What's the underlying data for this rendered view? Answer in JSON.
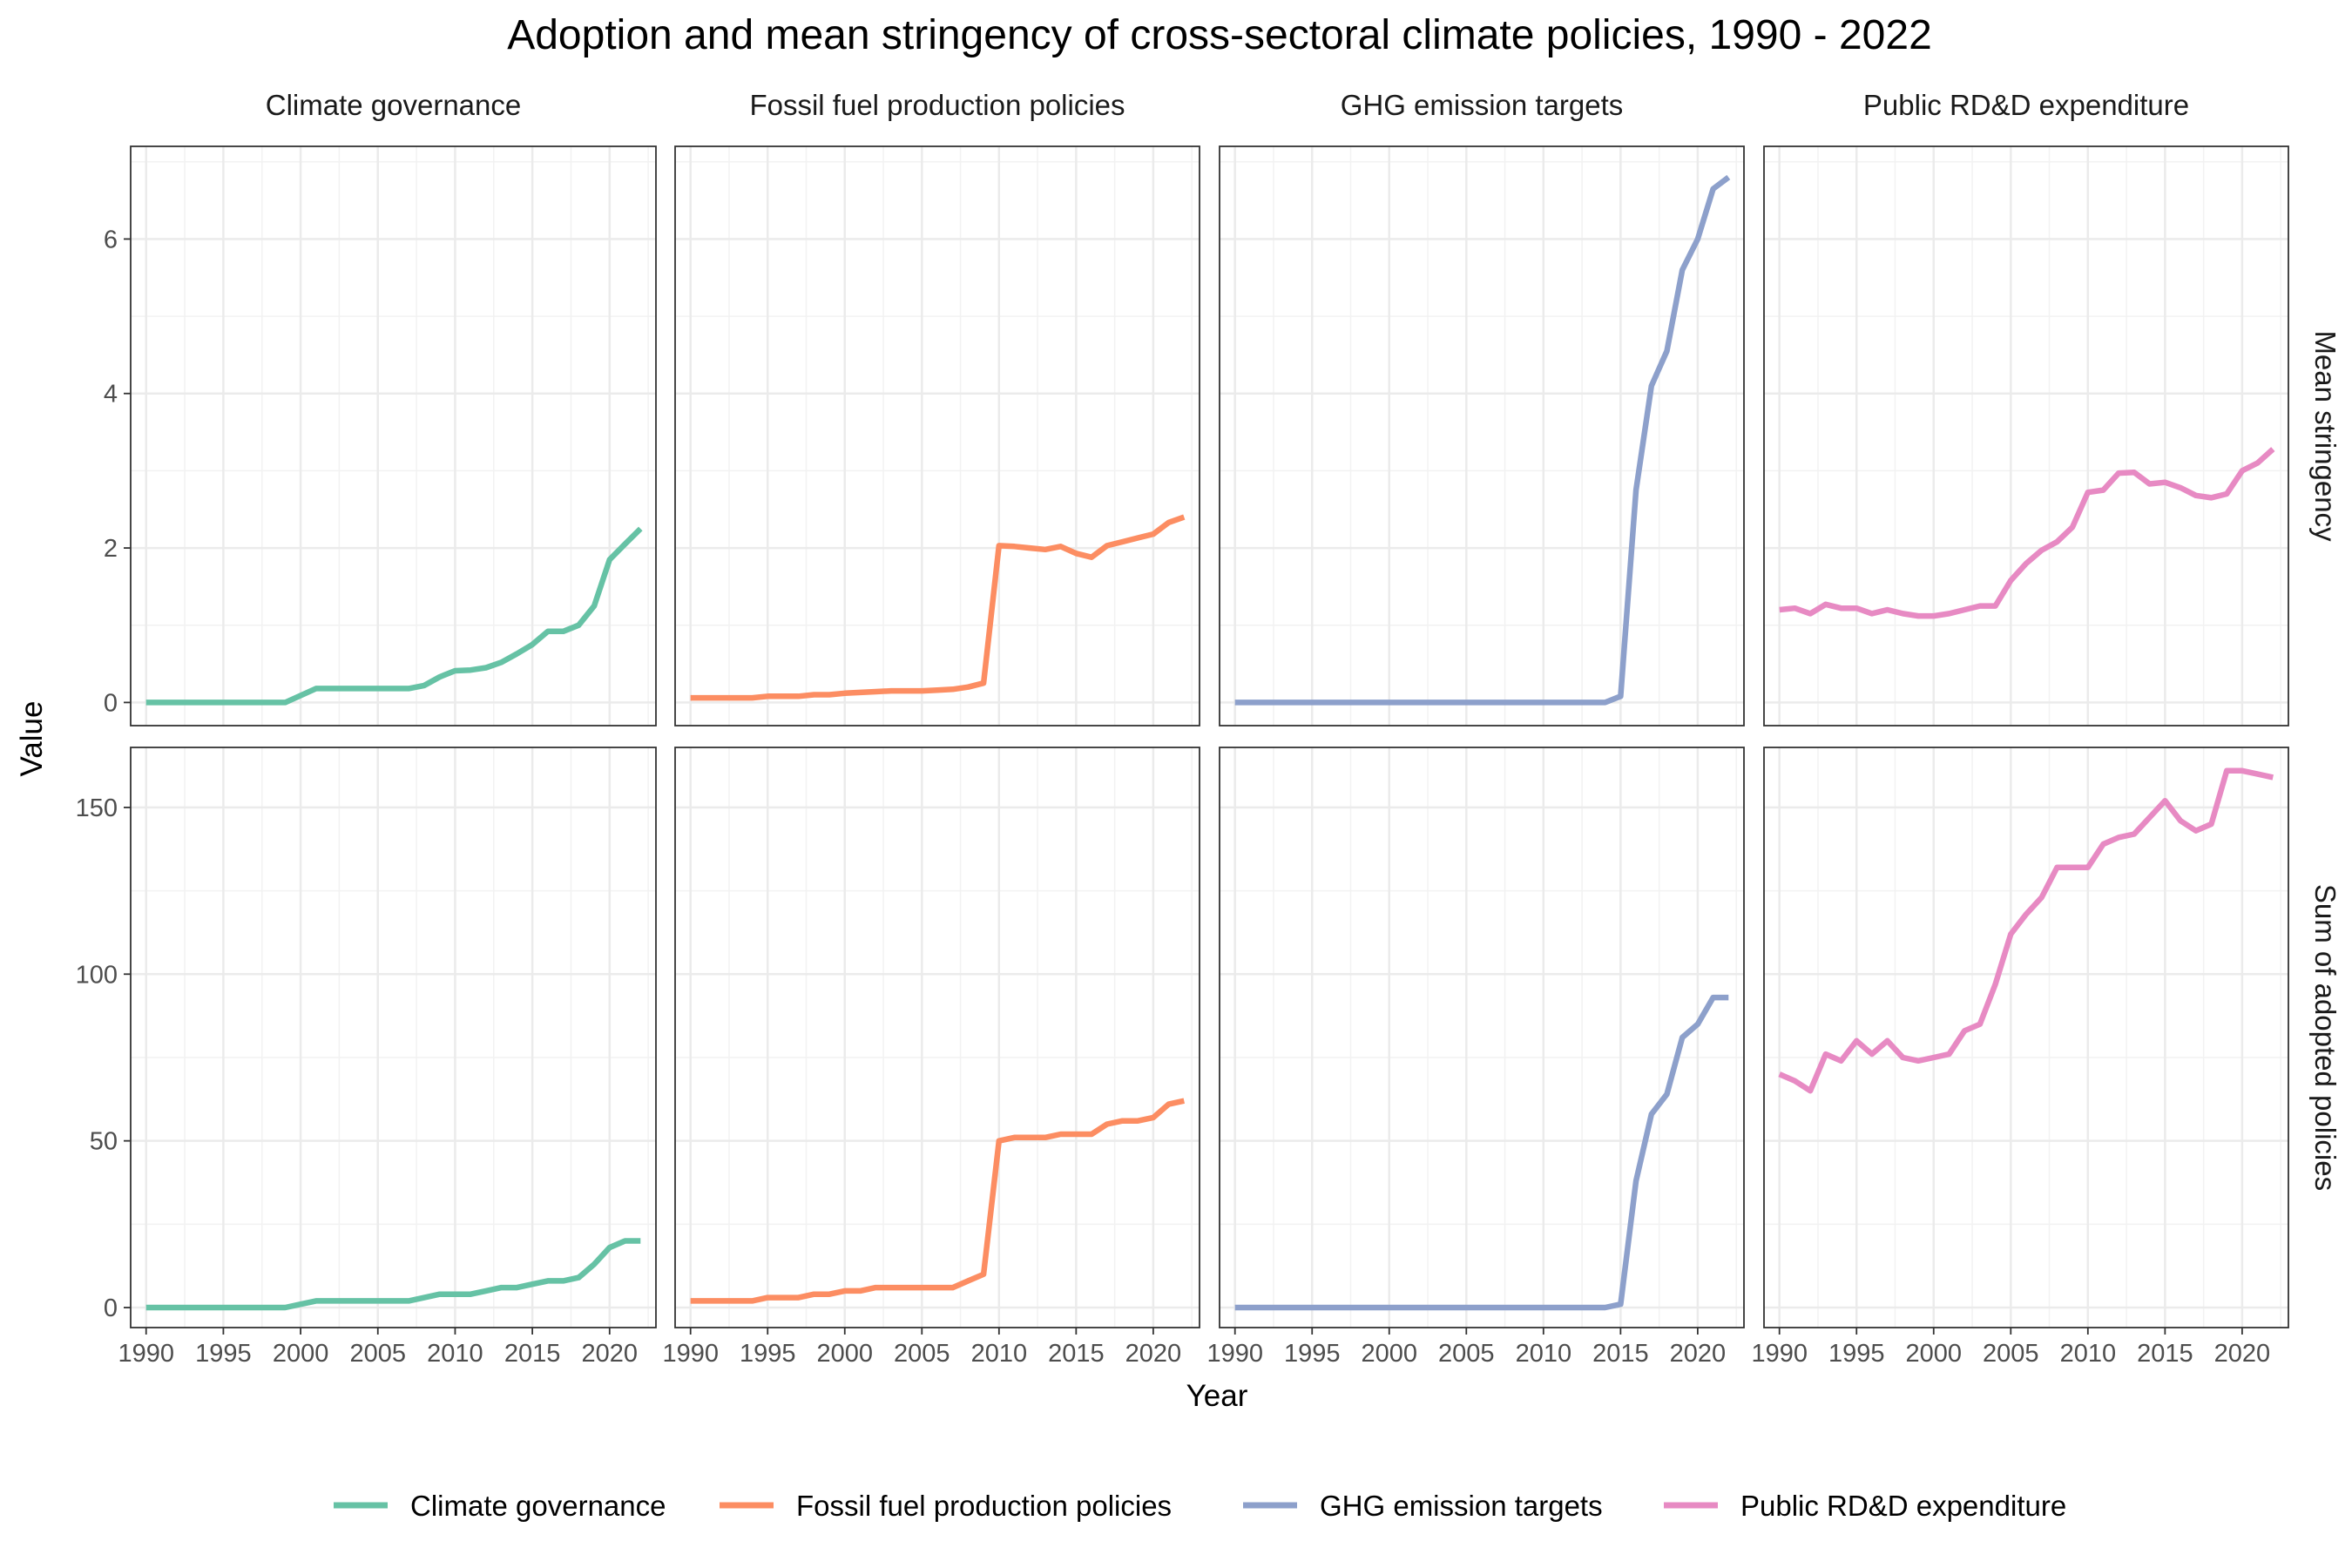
{
  "chart_data": {
    "type": "line",
    "title": "Adoption and mean stringency of cross-sectoral climate policies, 1990 - 2022",
    "xlabel": "Year",
    "ylabel": "Value",
    "x_ticks": [
      1990,
      1995,
      2000,
      2005,
      2010,
      2015,
      2020
    ],
    "xlim": [
      1989,
      2023
    ],
    "columns": [
      "Climate governance",
      "Fossil fuel production policies",
      "GHG emission targets",
      "Public RD&D expenditure"
    ],
    "rows": [
      {
        "label": "Mean stringency",
        "ylim": [
          -0.3,
          7.2
        ],
        "y_ticks": [
          0,
          2,
          4,
          6
        ]
      },
      {
        "label": "Sum of adopted policies",
        "ylim": [
          -6,
          168
        ],
        "y_ticks": [
          0,
          50,
          100,
          150
        ]
      }
    ],
    "years": [
      1990,
      1991,
      1992,
      1993,
      1994,
      1995,
      1996,
      1997,
      1998,
      1999,
      2000,
      2001,
      2002,
      2003,
      2004,
      2005,
      2006,
      2007,
      2008,
      2009,
      2010,
      2011,
      2012,
      2013,
      2014,
      2015,
      2016,
      2017,
      2018,
      2019,
      2020,
      2021,
      2022
    ],
    "series": [
      {
        "name": "Climate governance",
        "color": "#66c2a5",
        "mean_stringency": [
          0,
          0,
          0,
          0,
          0,
          0,
          0,
          0,
          0,
          0,
          0.09,
          0.18,
          0.18,
          0.18,
          0.18,
          0.18,
          0.18,
          0.18,
          0.22,
          0.33,
          0.41,
          0.42,
          0.45,
          0.52,
          0.63,
          0.75,
          0.92,
          0.92,
          1.0,
          1.25,
          1.85,
          2.05,
          2.25
        ],
        "sum_adopted": [
          0,
          0,
          0,
          0,
          0,
          0,
          0,
          0,
          0,
          0,
          1,
          2,
          2,
          2,
          2,
          2,
          2,
          2,
          3,
          4,
          4,
          4,
          5,
          6,
          6,
          7,
          8,
          8,
          9,
          13,
          18,
          20,
          20
        ]
      },
      {
        "name": "Fossil fuel production policies",
        "color": "#fc8d62",
        "mean_stringency": [
          0.06,
          0.06,
          0.06,
          0.06,
          0.06,
          0.08,
          0.08,
          0.08,
          0.1,
          0.1,
          0.12,
          0.13,
          0.14,
          0.15,
          0.15,
          0.15,
          0.16,
          0.17,
          0.2,
          0.25,
          2.03,
          2.02,
          2.0,
          1.98,
          2.02,
          1.93,
          1.88,
          2.03,
          2.08,
          2.13,
          2.18,
          2.33,
          2.4
        ],
        "sum_adopted": [
          2,
          2,
          2,
          2,
          2,
          3,
          3,
          3,
          4,
          4,
          5,
          5,
          6,
          6,
          6,
          6,
          6,
          6,
          8,
          10,
          50,
          51,
          51,
          51,
          52,
          52,
          52,
          55,
          56,
          56,
          57,
          61,
          62
        ]
      },
      {
        "name": "GHG emission targets",
        "color": "#8da0cb",
        "mean_stringency": [
          0,
          0,
          0,
          0,
          0,
          0,
          0,
          0,
          0,
          0,
          0,
          0,
          0,
          0,
          0,
          0,
          0,
          0,
          0,
          0,
          0,
          0,
          0,
          0,
          0,
          0.08,
          2.75,
          4.1,
          4.55,
          5.6,
          6.0,
          6.65,
          6.8
        ],
        "sum_adopted": [
          0,
          0,
          0,
          0,
          0,
          0,
          0,
          0,
          0,
          0,
          0,
          0,
          0,
          0,
          0,
          0,
          0,
          0,
          0,
          0,
          0,
          0,
          0,
          0,
          0,
          1,
          38,
          58,
          64,
          81,
          85,
          93,
          93
        ]
      },
      {
        "name": "Public RD&D expenditure",
        "color": "#e78ac3",
        "mean_stringency": [
          1.2,
          1.22,
          1.15,
          1.27,
          1.22,
          1.22,
          1.15,
          1.2,
          1.15,
          1.12,
          1.12,
          1.15,
          1.2,
          1.25,
          1.25,
          1.58,
          1.8,
          1.97,
          2.08,
          2.27,
          2.72,
          2.75,
          2.97,
          2.98,
          2.83,
          2.85,
          2.78,
          2.68,
          2.65,
          2.7,
          3.0,
          3.1,
          3.28
        ],
        "sum_adopted": [
          70,
          68,
          65,
          76,
          74,
          80,
          76,
          80,
          75,
          74,
          75,
          76,
          83,
          85,
          97,
          112,
          118,
          123,
          132,
          132,
          132,
          139,
          141,
          142,
          147,
          152,
          146,
          143,
          145,
          161,
          161,
          160,
          159
        ]
      }
    ],
    "legend": {
      "position": "bottom",
      "entries": [
        "Climate governance",
        "Fossil fuel production policies",
        "GHG emission targets",
        "Public RD&D expenditure"
      ]
    },
    "grid": true
  }
}
